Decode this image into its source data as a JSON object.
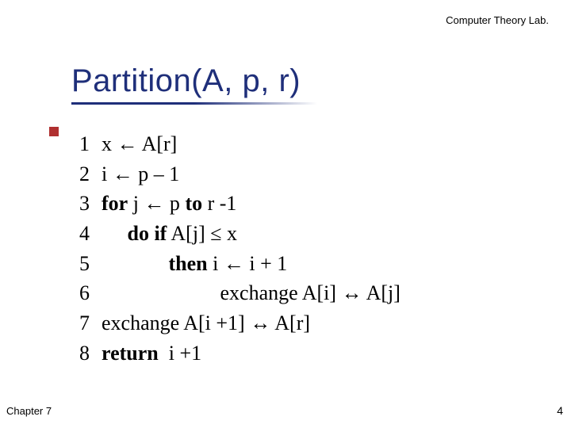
{
  "header": {
    "lab": "Computer Theory Lab."
  },
  "title": {
    "text": "Partition(A, p, r)",
    "color": "#1f2f7a",
    "fontsize": 40,
    "underline_color": "#1f2f7a"
  },
  "accent": {
    "color": "#b03030"
  },
  "code": {
    "fontsize": 26,
    "text_color": "#000000",
    "lines": [
      {
        "n": "1",
        "pre": "",
        "kw": "",
        "post": "x ← A[r]"
      },
      {
        "n": "2",
        "pre": "",
        "kw": "",
        "post": "i ← p – 1"
      },
      {
        "n": "3",
        "pre": "",
        "kw": "for",
        "post": " j ← p ",
        "kw2": "to",
        "post2": " r -1"
      },
      {
        "n": "4",
        "pre": "     ",
        "kw": "do if",
        "post": " A[j] ≤ x"
      },
      {
        "n": "5",
        "pre": "             ",
        "kw": "then",
        "post": " i ← i + 1"
      },
      {
        "n": "6",
        "pre": "                       ",
        "kw": "",
        "post": "exchange A[i] ↔ A[j]"
      },
      {
        "n": "7",
        "pre": "",
        "kw": "",
        "post": "exchange A[i +1] ↔ A[r]"
      },
      {
        "n": "8",
        "pre": "",
        "kw": "return",
        "post": "  i +1"
      }
    ]
  },
  "footer": {
    "chapter": "Chapter 7",
    "page": "4"
  }
}
